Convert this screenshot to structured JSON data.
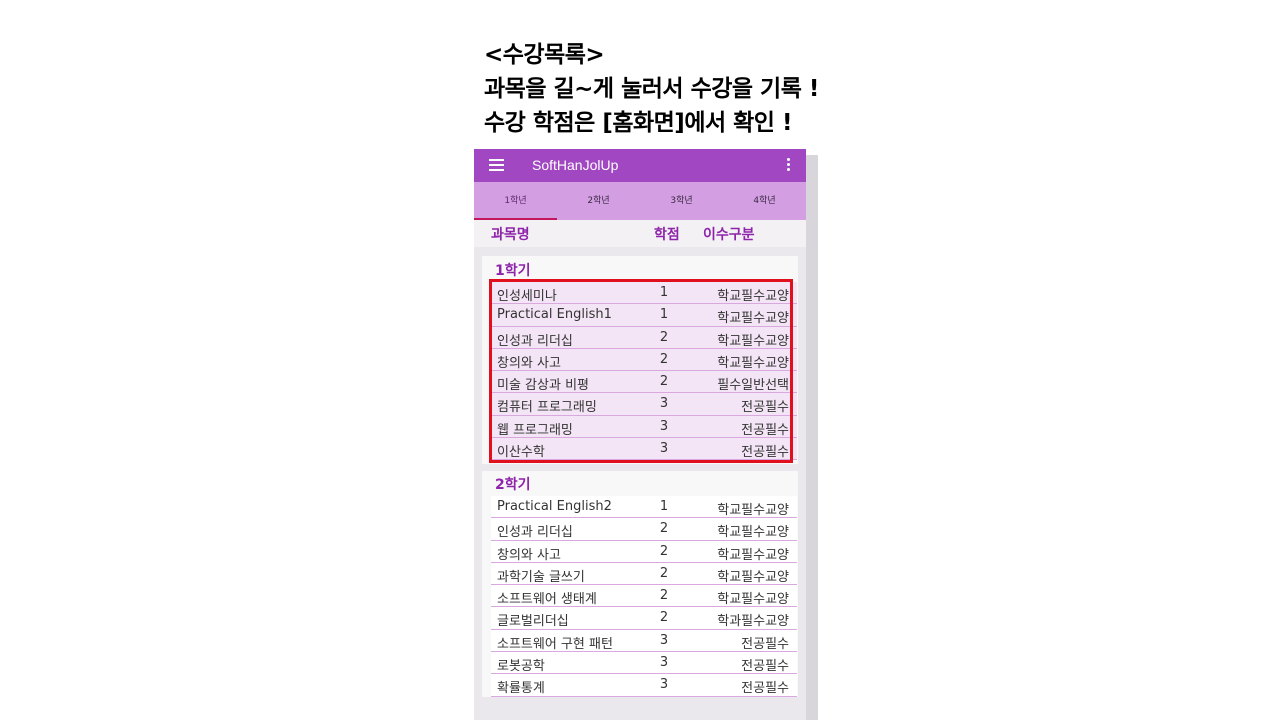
{
  "caption": {
    "line1": "<수강목록>",
    "line2": "과목을 길~게 눌러서 수강을 기록 !",
    "line3": "수강 학점은 [홈화면]에서 확인 !"
  },
  "appbar": {
    "title": "SoftHanJolUp",
    "menu_icon": "hamburger-menu-icon",
    "more_icon": "more-vert-icon"
  },
  "tabs": [
    "1학년",
    "2학년",
    "3학년",
    "4학년"
  ],
  "active_tab": 0,
  "columns": {
    "name": "과목명",
    "credit": "학점",
    "type": "이수구분"
  },
  "semesters": [
    {
      "title": "1학기",
      "courses": [
        {
          "name": "인성세미나",
          "credit": "1",
          "type": "학교필수교양"
        },
        {
          "name": "Practical English1",
          "credit": "1",
          "type": "학교필수교양"
        },
        {
          "name": "인성과 리더십",
          "credit": "2",
          "type": "학교필수교양"
        },
        {
          "name": "창의와 사고",
          "credit": "2",
          "type": "학교필수교양"
        },
        {
          "name": "미술 감상과 비평",
          "credit": "2",
          "type": "필수일반선택"
        },
        {
          "name": "컴퓨터 프로그래밍",
          "credit": "3",
          "type": "전공필수"
        },
        {
          "name": "웹 프로그래밍",
          "credit": "3",
          "type": "전공필수"
        },
        {
          "name": "이산수학",
          "credit": "3",
          "type": "전공필수"
        }
      ]
    },
    {
      "title": "2학기",
      "courses": [
        {
          "name": "Practical English2",
          "credit": "1",
          "type": "학교필수교양"
        },
        {
          "name": "인성과 리더십",
          "credit": "2",
          "type": "학교필수교양"
        },
        {
          "name": "창의와 사고",
          "credit": "2",
          "type": "학교필수교양"
        },
        {
          "name": "과학기술 글쓰기",
          "credit": "2",
          "type": "학교필수교양"
        },
        {
          "name": "소프트웨어 생태계",
          "credit": "2",
          "type": "학교필수교양"
        },
        {
          "name": "글로벌리더십",
          "credit": "2",
          "type": "학과필수교양"
        },
        {
          "name": "소프트웨어 구현 패턴",
          "credit": "3",
          "type": "전공필수"
        },
        {
          "name": "로봇공학",
          "credit": "3",
          "type": "전공필수"
        },
        {
          "name": "확률통계",
          "credit": "3",
          "type": "전공필수"
        }
      ]
    }
  ],
  "colors": {
    "appbar": "#a147c2",
    "tabs": "#d49fe2",
    "accent": "#8e24aa",
    "highlight": "#e0101e"
  }
}
